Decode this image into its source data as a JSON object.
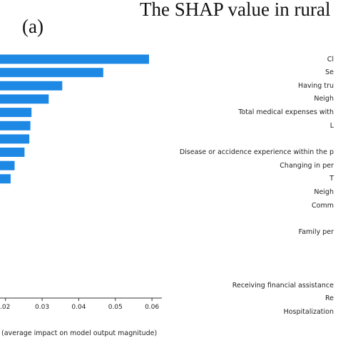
{
  "title": "The SHAP value in rural",
  "panel_label": "(a)",
  "chart_data": {
    "type": "bar",
    "orientation": "horizontal",
    "xlabel": "(average impact on model output magnitude)",
    "ylabel": "",
    "xlim": [
      0.0185,
      0.062
    ],
    "xticks": [
      {
        "value": 0.02,
        "label": ".02"
      },
      {
        "value": 0.03,
        "label": "0.03"
      },
      {
        "value": 0.04,
        "label": "0.04"
      },
      {
        "value": 0.05,
        "label": "0.05"
      },
      {
        "value": 0.06,
        "label": "0.06"
      }
    ],
    "bar_color": "#1e88e5",
    "categories": [
      {
        "label": "Cl",
        "value": 0.0592
      },
      {
        "label": "Se",
        "value": 0.0467
      },
      {
        "label": "Having tru",
        "value": 0.0355
      },
      {
        "label": "Neigh",
        "value": 0.0318
      },
      {
        "label": "Total medical expenses with",
        "value": 0.0271
      },
      {
        "label": "L",
        "value": 0.0268
      },
      {
        "label": "",
        "value": 0.0265
      },
      {
        "label": "Disease or accidence experience within the p",
        "value": 0.0252
      },
      {
        "label": "Changing in per",
        "value": 0.0225
      },
      {
        "label": "T",
        "value": 0.0214
      },
      {
        "label": "Neigh",
        "value": 0
      },
      {
        "label": "Comm",
        "value": 0
      },
      {
        "label": "",
        "value": 0
      },
      {
        "label": "Family per",
        "value": 0
      },
      {
        "label": "",
        "value": 0
      },
      {
        "label": "",
        "value": 0
      },
      {
        "label": "",
        "value": 0
      },
      {
        "label": "Receiving financial assistance",
        "value": 0
      },
      {
        "label": "Re",
        "value": 0
      },
      {
        "label": "Hospitalization",
        "value": 0
      }
    ]
  }
}
